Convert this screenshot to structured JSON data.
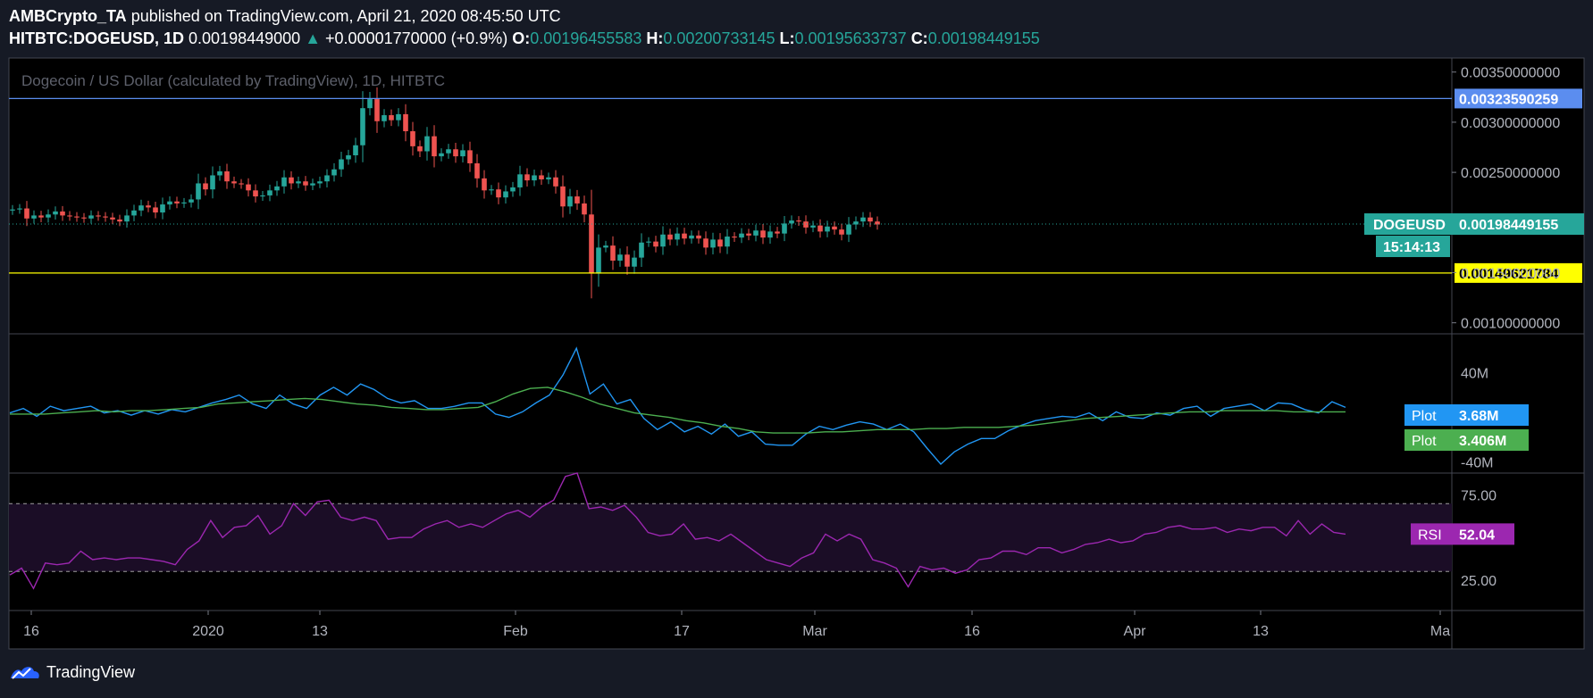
{
  "header": {
    "author": "AMBCrypto_TA",
    "published_text": "published on TradingView.com, April 21, 2020 08:45:50 UTC",
    "symbol": "HITBTC:DOGEUSD, 1D",
    "last": "0.00198449000",
    "change": "+0.00001770000 (+0.9%)",
    "o_label": "O:",
    "o_value": "0.00196455583",
    "h_label": "H:",
    "h_value": "0.00200733145",
    "l_label": "L:",
    "l_value": "0.00195633737",
    "c_label": "C:",
    "c_value": "0.00198449155"
  },
  "footer": {
    "brand": "TradingView"
  },
  "colors": {
    "background": "#000000",
    "frame": "#161a25",
    "up": "#26a69a",
    "down": "#ef5350",
    "resistance": "#5b8def",
    "support": "#ffff00",
    "plot1": "#2196f3",
    "plot2": "#4caf50",
    "rsi": "#9c27b0"
  },
  "chart_data": [
    {
      "type": "candlestick",
      "title": "Dogecoin / US Dollar (calculated by TradingView), 1D, HITBTC",
      "x_ticks": [
        "16",
        "2020",
        "13",
        "Feb",
        "17",
        "Mar",
        "16",
        "Apr",
        "13",
        "Ma"
      ],
      "y_ticks": [
        "0.00350000000",
        "0.00300000000",
        "0.00250000000",
        "0.00150000000",
        "0.00100000000"
      ],
      "y_tick_values": [
        0.0035,
        0.003,
        0.0025,
        0.0015,
        0.001
      ],
      "ylim": [
        0.00089,
        0.00364
      ],
      "level_lines": [
        {
          "label": "0.00323590259",
          "value": 0.00323590259,
          "color": "#5b8def"
        },
        {
          "label": "0.00149621784",
          "value": 0.00149621784,
          "color": "#ffff00"
        }
      ],
      "last_price": {
        "name": "DOGEUSD",
        "label": "0.00198449155",
        "value": 0.00198449155,
        "countdown": "15:14:13"
      },
      "closes": [
        0.00213,
        0.00214,
        0.00204,
        0.00207,
        0.00205,
        0.00208,
        0.00211,
        0.00207,
        0.00206,
        0.00205,
        0.00204,
        0.00207,
        0.00206,
        0.00205,
        0.00203,
        0.00201,
        0.00207,
        0.00212,
        0.00217,
        0.00215,
        0.0021,
        0.00218,
        0.00221,
        0.00219,
        0.0022,
        0.00223,
        0.00239,
        0.00233,
        0.00247,
        0.00251,
        0.00241,
        0.00239,
        0.00238,
        0.00232,
        0.00226,
        0.00227,
        0.00232,
        0.00236,
        0.00245,
        0.00239,
        0.00241,
        0.00237,
        0.00239,
        0.00241,
        0.00247,
        0.00253,
        0.00263,
        0.00267,
        0.00277,
        0.00314,
        0.00323,
        0.00301,
        0.00307,
        0.00302,
        0.00308,
        0.00291,
        0.00276,
        0.00271,
        0.00286,
        0.00266,
        0.00269,
        0.00273,
        0.00266,
        0.00272,
        0.00259,
        0.00244,
        0.00232,
        0.00233,
        0.00225,
        0.00231,
        0.00235,
        0.00248,
        0.00242,
        0.00247,
        0.00243,
        0.00245,
        0.00236,
        0.00216,
        0.00226,
        0.00219,
        0.00208,
        0.00149,
        0.00175,
        0.00177,
        0.00162,
        0.00168,
        0.00156,
        0.00165,
        0.0018,
        0.00181,
        0.00176,
        0.00188,
        0.00183,
        0.00189,
        0.00184,
        0.00187,
        0.00184,
        0.00175,
        0.00183,
        0.00176,
        0.00186,
        0.00185,
        0.00189,
        0.00187,
        0.00192,
        0.00185,
        0.00191,
        0.00189,
        0.00199,
        0.00202,
        0.00201,
        0.00195,
        0.00197,
        0.00191,
        0.00196,
        0.00193,
        0.00188,
        0.00198,
        0.00201,
        0.00205,
        0.00201,
        0.00198
      ]
    },
    {
      "type": "line",
      "y_ticks": [
        "40M",
        "-40M"
      ],
      "y_tick_values": [
        40,
        -40
      ],
      "ylim": [
        -50,
        75
      ],
      "series": [
        {
          "name": "Plot",
          "value_label": "3.68M",
          "values": [
            4,
            8,
            1,
            10,
            6,
            8,
            10,
            4,
            6,
            2,
            6,
            3,
            7,
            5,
            9,
            13,
            16,
            20,
            12,
            8,
            20,
            12,
            8,
            20,
            27,
            20,
            30,
            25,
            17,
            13,
            15,
            8,
            8,
            10,
            13,
            13,
            3,
            0,
            5,
            13,
            20,
            38,
            62,
            21,
            30,
            12,
            16,
            -1,
            -11,
            -4,
            -13,
            -8,
            -15,
            -6,
            -17,
            -13,
            -24,
            -25,
            -25,
            -15,
            -8,
            -11,
            -7,
            -4,
            -6,
            -11,
            -6,
            -13,
            -28,
            -42,
            -31,
            -24,
            -19,
            -19,
            -12,
            -7,
            -3,
            -1,
            1,
            0,
            4,
            -3,
            5,
            0,
            -1,
            4,
            2,
            8,
            10,
            1,
            8,
            10,
            12,
            6,
            13,
            12,
            7,
            4,
            14,
            9
          ]
        },
        {
          "name": "Plot",
          "value_label": "3.406M",
          "values": [
            3,
            3,
            3,
            4,
            5,
            6,
            5,
            6,
            6,
            7,
            8,
            9,
            12,
            13,
            14,
            15,
            16,
            17,
            16,
            14,
            12,
            11,
            9,
            8,
            7,
            7,
            8,
            9,
            14,
            21,
            26,
            27,
            23,
            18,
            12,
            8,
            4,
            2,
            0,
            -3,
            -5,
            -8,
            -10,
            -13,
            -14,
            -14,
            -14,
            -13,
            -13,
            -12,
            -11,
            -11,
            -11,
            -10,
            -10,
            -9,
            -9,
            -9,
            -8,
            -7,
            -5,
            -3,
            -1,
            0,
            1,
            2,
            3,
            4,
            5,
            5,
            6,
            6,
            6,
            6,
            5,
            5,
            5,
            5
          ]
        }
      ]
    },
    {
      "type": "line",
      "y_ticks": [
        "75.00",
        "25.00"
      ],
      "y_tick_values": [
        75,
        25
      ],
      "ylim": [
        7,
        88
      ],
      "bands": [
        70,
        30
      ],
      "series": [
        {
          "name": "RSI",
          "value_label": "52.04",
          "values": [
            28,
            32,
            20,
            35,
            34,
            35,
            42,
            37,
            38,
            37,
            38,
            38,
            37,
            36,
            34,
            43,
            48,
            60,
            50,
            56,
            57,
            63,
            52,
            57,
            70,
            63,
            71,
            72,
            62,
            60,
            62,
            60,
            49,
            50,
            50,
            55,
            58,
            60,
            56,
            58,
            56,
            60,
            64,
            66,
            62,
            68,
            72,
            86,
            88,
            67,
            68,
            66,
            69,
            62,
            53,
            51,
            52,
            58,
            49,
            50,
            48,
            52,
            47,
            42,
            37,
            35,
            33,
            38,
            41,
            52,
            48,
            52,
            49,
            37,
            35,
            32,
            21,
            33,
            31,
            32,
            29,
            31,
            37,
            38,
            42,
            42,
            40,
            44,
            44,
            41,
            43,
            46,
            47,
            49,
            47,
            48,
            52,
            53,
            56,
            57,
            55,
            55,
            56,
            53,
            55,
            54,
            56,
            56,
            51,
            60,
            52,
            58,
            53,
            52
          ]
        }
      ]
    }
  ]
}
